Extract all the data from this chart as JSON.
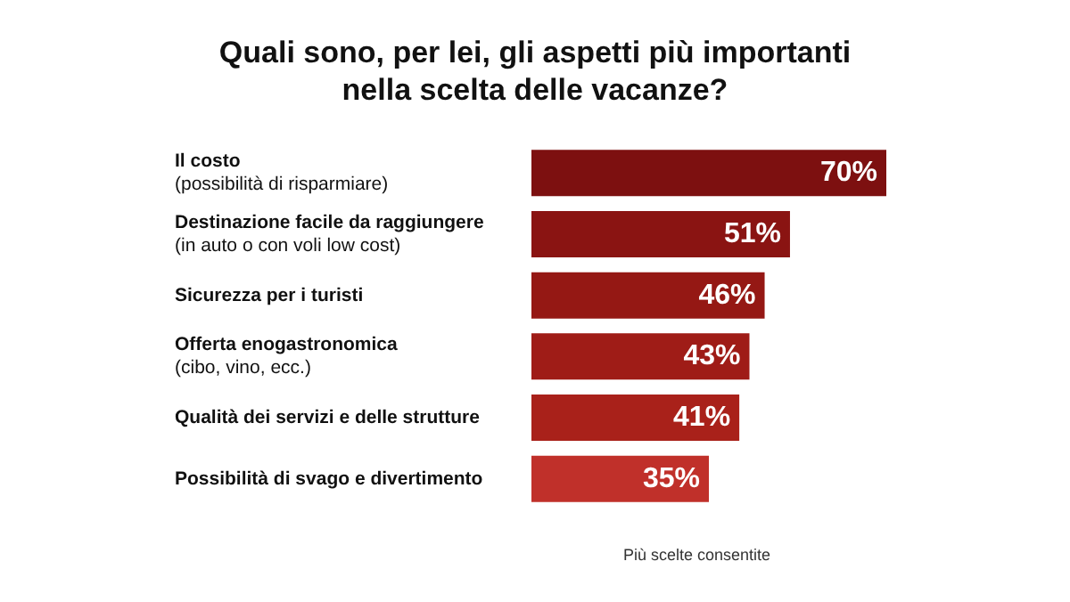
{
  "chart_data": {
    "type": "bar",
    "orientation": "horizontal",
    "title": "Quali sono, per lei, gli aspetti più importanti\nnella scelta delle vacanze?",
    "categories": [
      "Il costo\n(possibilità di risparmiare)",
      "Destinazione facile da raggiungere\n(in auto o con voli low cost)",
      "Sicurezza per i turisti",
      "Offerta enogastronomica\n(cibo, vino, ecc.)",
      "Qualità dei servizi e delle strutture",
      "Possibilità di svago e divertimento"
    ],
    "values": [
      70,
      51,
      46,
      43,
      41,
      35
    ],
    "value_labels": [
      "70%",
      "51%",
      "46%",
      "43%",
      "41%",
      "35%"
    ],
    "colors": [
      "#7d1010",
      "#8a1412",
      "#951814",
      "#9f1c17",
      "#a9211a",
      "#c0302a"
    ],
    "annotations": [
      "Più scelte consentite"
    ],
    "grid": false
  }
}
